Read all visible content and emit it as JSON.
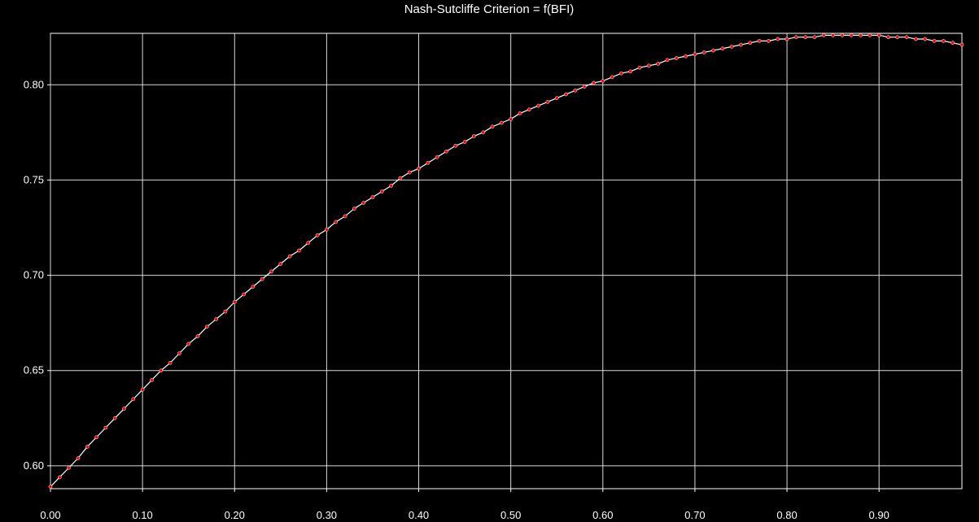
{
  "chart_data": {
    "type": "line",
    "title": "Nash-Sutcliffe Criterion = f(BFI)",
    "xlabel": "",
    "ylabel": "",
    "xlim": [
      0.0,
      0.99
    ],
    "ylim": [
      0.588,
      0.827
    ],
    "xticks": [
      0.0,
      0.1,
      0.2,
      0.3,
      0.4,
      0.5,
      0.6,
      0.7,
      0.8,
      0.9
    ],
    "xtick_labels": [
      "0.00",
      "0.10",
      "0.20",
      "0.30",
      "0.40",
      "0.50",
      "0.60",
      "0.70",
      "0.80",
      "0.90"
    ],
    "yticks": [
      0.6,
      0.65,
      0.7,
      0.75,
      0.8
    ],
    "ytick_labels": [
      "0.60",
      "0.65",
      "0.70",
      "0.75",
      "0.80"
    ],
    "grid": true,
    "legend": "none",
    "colors": {
      "background": "#000000",
      "frame": "#ffffff",
      "grid": "#d9d9d9",
      "line": "#ffffff",
      "markers": "#ff0000",
      "text": "#ffffff"
    },
    "series": [
      {
        "x": [
          0.0,
          0.01,
          0.02,
          0.03,
          0.04,
          0.05,
          0.06,
          0.07,
          0.08,
          0.09,
          0.1,
          0.11,
          0.12,
          0.13,
          0.14,
          0.15,
          0.16,
          0.17,
          0.18,
          0.19,
          0.2,
          0.21,
          0.22,
          0.23,
          0.24,
          0.25,
          0.26,
          0.27,
          0.28,
          0.29,
          0.3,
          0.31,
          0.32,
          0.33,
          0.34,
          0.35,
          0.36,
          0.37,
          0.38,
          0.39,
          0.4,
          0.41,
          0.42,
          0.43,
          0.44,
          0.45,
          0.46,
          0.47,
          0.48,
          0.49,
          0.5,
          0.51,
          0.52,
          0.53,
          0.54,
          0.55,
          0.56,
          0.57,
          0.58,
          0.59,
          0.6,
          0.61,
          0.62,
          0.63,
          0.64,
          0.65,
          0.66,
          0.67,
          0.68,
          0.69,
          0.7,
          0.71,
          0.72,
          0.73,
          0.74,
          0.75,
          0.76,
          0.77,
          0.78,
          0.79,
          0.8,
          0.81,
          0.82,
          0.83,
          0.84,
          0.85,
          0.86,
          0.87,
          0.88,
          0.89,
          0.9,
          0.91,
          0.92,
          0.93,
          0.94,
          0.95,
          0.96,
          0.97,
          0.98,
          0.99
        ],
        "y": [
          0.589,
          0.594,
          0.599,
          0.604,
          0.61,
          0.615,
          0.62,
          0.625,
          0.63,
          0.635,
          0.64,
          0.645,
          0.65,
          0.654,
          0.659,
          0.664,
          0.668,
          0.673,
          0.677,
          0.681,
          0.686,
          0.69,
          0.694,
          0.698,
          0.702,
          0.706,
          0.71,
          0.713,
          0.717,
          0.721,
          0.724,
          0.728,
          0.731,
          0.735,
          0.738,
          0.741,
          0.744,
          0.747,
          0.751,
          0.754,
          0.756,
          0.759,
          0.762,
          0.765,
          0.768,
          0.77,
          0.773,
          0.775,
          0.778,
          0.78,
          0.782,
          0.785,
          0.787,
          0.789,
          0.791,
          0.793,
          0.795,
          0.797,
          0.799,
          0.801,
          0.802,
          0.804,
          0.806,
          0.807,
          0.809,
          0.81,
          0.811,
          0.813,
          0.814,
          0.815,
          0.816,
          0.817,
          0.818,
          0.819,
          0.82,
          0.821,
          0.822,
          0.823,
          0.823,
          0.824,
          0.824,
          0.825,
          0.825,
          0.825,
          0.826,
          0.826,
          0.826,
          0.826,
          0.826,
          0.826,
          0.826,
          0.825,
          0.825,
          0.825,
          0.824,
          0.824,
          0.823,
          0.823,
          0.822,
          0.821
        ]
      }
    ]
  }
}
